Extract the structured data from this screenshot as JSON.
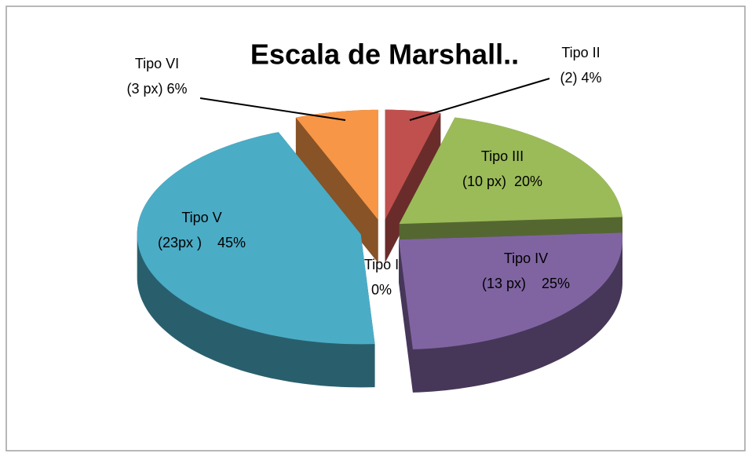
{
  "chart_data": {
    "type": "pie",
    "title": "Escala de Marshall..",
    "categories": [
      "Tipo I",
      "Tipo II",
      "Tipo III",
      "Tipo IV",
      "Tipo V",
      "Tipo VI"
    ],
    "values": [
      0,
      4,
      20,
      25,
      45,
      6
    ],
    "value_labels": [
      "0%",
      "(2) 4%",
      "(10 px)  20%",
      "(13 px)    25%",
      "(23px )    45%",
      "(3 px) 6%"
    ],
    "colors": [
      "#4f81bd",
      "#c0504d",
      "#9bbb59",
      "#8064a2",
      "#4bacc6",
      "#f79646"
    ]
  }
}
